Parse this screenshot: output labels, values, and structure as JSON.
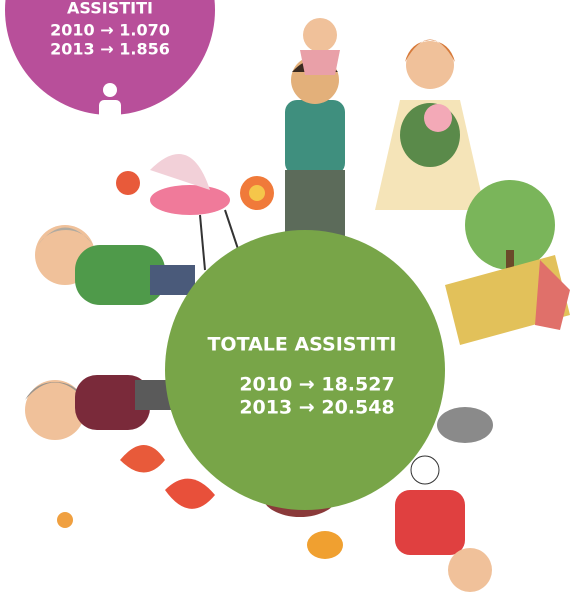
{
  "badge": {
    "title": "ASSISTITI",
    "lines": [
      "2010 → 1.070",
      "2013 → 1.856"
    ]
  },
  "globe": {
    "title": "TOTALE ASSISTITI",
    "lines": [
      "2010 → 18.527",
      "2013 → 20.548"
    ]
  }
}
